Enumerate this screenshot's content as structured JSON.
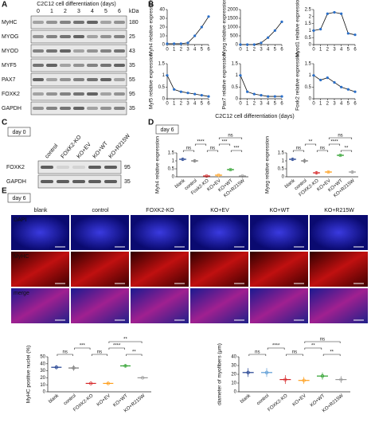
{
  "panel_a": {
    "letter": "A",
    "title": "C2C12 cell differentiation (days)",
    "days": [
      "0",
      "1",
      "2",
      "3",
      "4",
      "5",
      "6"
    ],
    "kda_label": "kDa",
    "rows": [
      {
        "label": "MyHC",
        "kda": "180"
      },
      {
        "label": "MYOG",
        "kda": "25"
      },
      {
        "label": "MYOD",
        "kda": "43"
      },
      {
        "label": "MYF5",
        "kda": "35"
      },
      {
        "label": "PAX7",
        "kda": "55"
      },
      {
        "label": "FOXK2",
        "kda": "95"
      },
      {
        "label": "GAPDH",
        "kda": "35"
      }
    ]
  },
  "panel_b": {
    "letter": "B",
    "x_label": "C2C12 cell differentiation (days)"
  },
  "panel_c": {
    "letter": "C",
    "day": "day 0",
    "lanes": [
      "control",
      "FOXK2-KO",
      "KO+EV",
      "KO+WT",
      "KO+R215W"
    ],
    "rows": [
      {
        "label": "FOXK2",
        "kda": "95"
      },
      {
        "label": "GAPDH",
        "kda": "35"
      }
    ]
  },
  "panel_d": {
    "letter": "D",
    "day": "day 6"
  },
  "panel_e": {
    "letter": "E",
    "day": "day 6",
    "columns": [
      "blank",
      "control",
      "FOXK2-KO",
      "KO+EV",
      "KO+WT",
      "KO+R215W"
    ],
    "rows": [
      "DAPI",
      "MyHC",
      "merge"
    ]
  },
  "chart_data": [
    {
      "type": "line",
      "y_label": "Myh4 relative expression",
      "x": [
        0,
        1,
        2,
        3,
        4,
        5,
        6
      ],
      "values": [
        1,
        1,
        1,
        2,
        10,
        20,
        32
      ],
      "ylim": [
        0,
        40
      ],
      "yticks": [
        0,
        10,
        20,
        30,
        40
      ],
      "xticks": [
        0,
        1,
        2,
        3,
        4,
        5,
        6
      ]
    },
    {
      "type": "line",
      "y_label": "Myog relative expression",
      "x": [
        0,
        1,
        2,
        3,
        4,
        5,
        6
      ],
      "values": [
        1,
        1,
        1,
        100,
        400,
        800,
        1300
      ],
      "ylim": [
        0,
        2000
      ],
      "yticks": [
        0,
        500,
        1000,
        1500,
        2000
      ],
      "xticks": [
        0,
        1,
        2,
        3,
        4,
        5,
        6
      ]
    },
    {
      "type": "line",
      "y_label": "Myod1 relative expression",
      "x": [
        0,
        1,
        2,
        3,
        4,
        5,
        6
      ],
      "values": [
        1,
        1.1,
        2.2,
        2.3,
        2.2,
        0.8,
        0.7
      ],
      "ylim": [
        0,
        2.5
      ],
      "yticks": [
        0,
        0.5,
        1,
        1.5,
        2,
        2.5
      ],
      "xticks": [
        0,
        1,
        2,
        3,
        4,
        5,
        6
      ]
    },
    {
      "type": "line",
      "y_label": "Myf5 relative expression",
      "x": [
        0,
        1,
        2,
        3,
        4,
        5,
        6
      ],
      "values": [
        1,
        0.4,
        0.3,
        0.25,
        0.2,
        0.15,
        0.1
      ],
      "ylim": [
        0,
        1.5
      ],
      "yticks": [
        0,
        0.5,
        1,
        1.5
      ],
      "xticks": [
        0,
        1,
        2,
        3,
        4,
        5,
        6
      ]
    },
    {
      "type": "line",
      "y_label": "Pax7 relative expression",
      "x": [
        0,
        1,
        2,
        3,
        4,
        5,
        6
      ],
      "values": [
        1,
        0.3,
        0.2,
        0.15,
        0.1,
        0.1,
        0.1
      ],
      "ylim": [
        0,
        1.5
      ],
      "yticks": [
        0,
        0.5,
        1,
        1.5
      ],
      "xticks": [
        0,
        1,
        2,
        3,
        4,
        5,
        6
      ]
    },
    {
      "type": "line",
      "y_label": "Foxk2 relative expression",
      "x": [
        0,
        1,
        2,
        3,
        4,
        5,
        6
      ],
      "values": [
        1,
        0.8,
        0.9,
        0.7,
        0.5,
        0.4,
        0.3
      ],
      "ylim": [
        0,
        1.5
      ],
      "yticks": [
        0,
        0.5,
        1,
        1.5
      ],
      "xticks": [
        0,
        1,
        2,
        3,
        4,
        5,
        6
      ]
    },
    {
      "type": "dot",
      "y_label": "Myh4 relative expression",
      "categories": [
        "blank",
        "control",
        "Foxk2-KO",
        "KO+EV",
        "KO+WT",
        "KO+R215W"
      ],
      "values": [
        1.1,
        1.0,
        0.05,
        0.1,
        0.45,
        0.05
      ],
      "errors": [
        0.1,
        0.1,
        0.02,
        0.03,
        0.05,
        0.02
      ],
      "colors": [
        "#1f3f8f",
        "#777777",
        "#d62728",
        "#ff9f1c",
        "#2ca02c",
        "#999999"
      ],
      "ylim": [
        0,
        1.5
      ],
      "yticks": [
        0,
        0.5,
        1,
        1.5
      ],
      "annotations": [
        "ns",
        "****",
        "ns",
        "***",
        "***",
        "ns"
      ]
    },
    {
      "type": "dot",
      "y_label": "Myog relative expression",
      "categories": [
        "blank",
        "control",
        "FOXK2-KO",
        "KO+EV",
        "KO+WT",
        "KO+R215W"
      ],
      "values": [
        1.1,
        1.0,
        0.25,
        0.3,
        1.35,
        0.3
      ],
      "errors": [
        0.1,
        0.15,
        0.1,
        0.05,
        0.05,
        0.1
      ],
      "colors": [
        "#1f3f8f",
        "#777777",
        "#d62728",
        "#ff9f1c",
        "#2ca02c",
        "#999999"
      ],
      "ylim": [
        0,
        1.5
      ],
      "yticks": [
        0,
        0.5,
        1,
        1.5
      ],
      "annotations": [
        "ns",
        "**",
        "ns",
        "****",
        "**",
        "ns"
      ]
    },
    {
      "type": "dot",
      "y_label": "MyHC positive nuclei (%)",
      "categories": [
        "blank",
        "control",
        "FOXK2-KO",
        "KO+EV",
        "KO+WT",
        "KO+R215W"
      ],
      "values": [
        35,
        34,
        12,
        12,
        37,
        20
      ],
      "errors": [
        3,
        4,
        1,
        2,
        2,
        1
      ],
      "colors": [
        "#1f3f8f",
        "#777777",
        "#d62728",
        "#ff9f1c",
        "#2ca02c",
        "#999999"
      ],
      "ylim": [
        0,
        50
      ],
      "yticks": [
        0,
        10,
        20,
        30,
        40,
        50
      ],
      "annotations": [
        "ns",
        "***",
        "ns",
        "****",
        "**",
        "**"
      ]
    },
    {
      "type": "dot",
      "y_label": "diameter of myofibers (μm)",
      "categories": [
        "blank",
        "control",
        "FOXK2-KO",
        "KO+EV",
        "KO+WT",
        "KO+R215W"
      ],
      "values": [
        22,
        22,
        14,
        13,
        18,
        14
      ],
      "errors": [
        5,
        5,
        5,
        4,
        4,
        4
      ],
      "colors": [
        "#1f3f8f",
        "#5b9bd5",
        "#d62728",
        "#ff9f1c",
        "#2ca02c",
        "#999999"
      ],
      "ylim": [
        0,
        40
      ],
      "yticks": [
        0,
        10,
        20,
        30,
        40
      ],
      "annotations": [
        "ns",
        "****",
        "ns",
        "**",
        "**",
        "ns"
      ]
    }
  ]
}
